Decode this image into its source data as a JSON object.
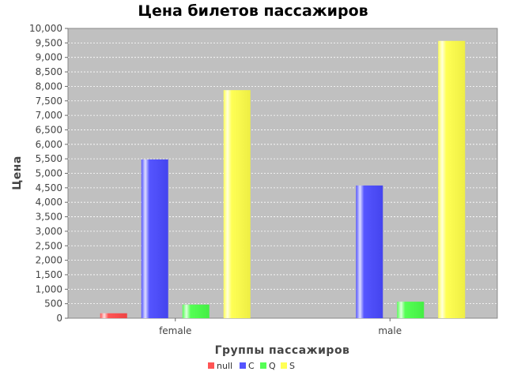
{
  "chart_data": {
    "type": "bar",
    "title": "Цена билетов пассажиров",
    "xlabel": "Группы пассажиров",
    "ylabel": "Цена",
    "categories": [
      "female",
      "male"
    ],
    "series": [
      {
        "name": "null",
        "color": "#ff5555",
        "values": [
          170,
          null
        ]
      },
      {
        "name": "C",
        "color": "#5555ff",
        "values": [
          5480,
          4580
        ]
      },
      {
        "name": "Q",
        "color": "#55ff55",
        "values": [
          470,
          570
        ]
      },
      {
        "name": "S",
        "color": "#ffff55",
        "values": [
          7870,
          9570
        ]
      }
    ],
    "ylim": [
      0,
      10000
    ],
    "ytick_step": 500,
    "grid": true,
    "legend_position": "bottom-center"
  }
}
